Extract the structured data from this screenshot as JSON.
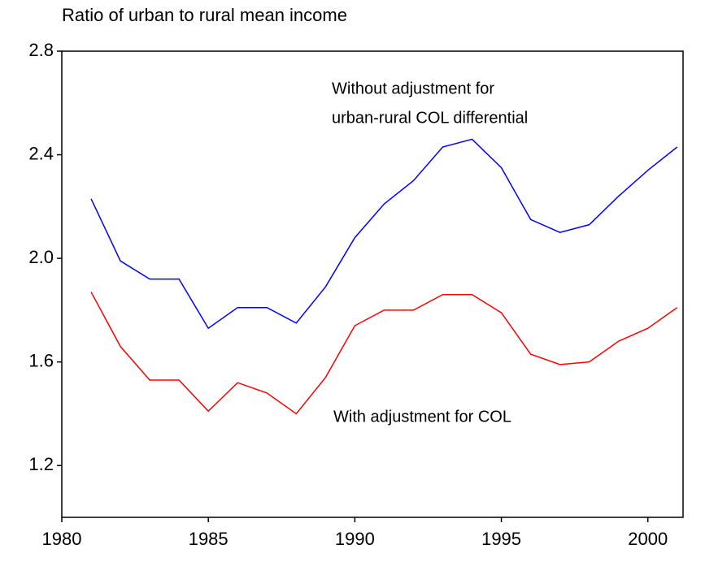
{
  "chart_data": {
    "type": "line",
    "title": "Ratio of urban to rural mean income",
    "x": [
      1981,
      1982,
      1983,
      1984,
      1985,
      1986,
      1987,
      1988,
      1989,
      1990,
      1991,
      1992,
      1993,
      1994,
      1995,
      1996,
      1997,
      1998,
      1999,
      2000,
      2001
    ],
    "series": [
      {
        "name": "Without adjustment for urban-rural COL differential",
        "color": "#0000ff",
        "values": [
          2.23,
          1.99,
          1.92,
          1.92,
          1.73,
          1.81,
          1.81,
          1.75,
          1.89,
          2.08,
          2.21,
          2.3,
          2.43,
          2.46,
          2.35,
          2.15,
          2.1,
          2.13,
          2.24,
          2.34,
          2.43
        ]
      },
      {
        "name": "With adjustment for COL",
        "color": "#ff0000",
        "values": [
          1.87,
          1.66,
          1.53,
          1.53,
          1.41,
          1.52,
          1.48,
          1.4,
          1.54,
          1.74,
          1.8,
          1.8,
          1.86,
          1.86,
          1.79,
          1.63,
          1.59,
          1.6,
          1.68,
          1.73,
          1.81
        ]
      }
    ],
    "annotations": [
      "Without adjustment for",
      "urban-rural COL differential",
      "With adjustment for COL"
    ],
    "xlim": [
      1980,
      2001.2
    ],
    "xticks": [
      1980,
      1985,
      1990,
      1995,
      2000
    ],
    "ylim": [
      1.0,
      2.8
    ],
    "yticks": [
      1.2,
      1.6,
      {
        "value": 2,
        "label": "2.0"
      },
      2.4,
      2.8
    ],
    "grid": false
  }
}
